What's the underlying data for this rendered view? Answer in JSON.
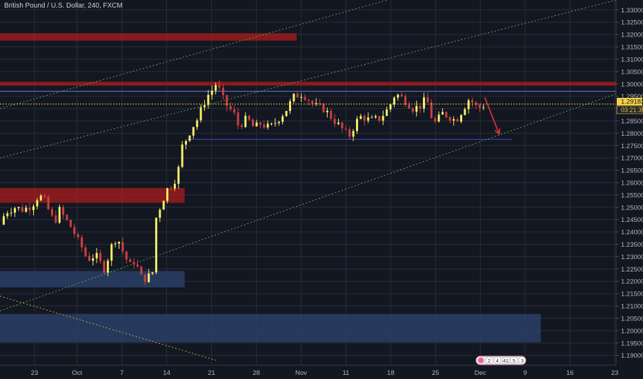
{
  "symbol_title": "British Pound / U.S. Dollar, 240, FXCM",
  "colors": {
    "background": "#131722",
    "grid": "#2a2e39",
    "candle_up": "#f5f06a",
    "candle_down": "#d04040",
    "resistance_zone": "#b71c1c",
    "support_zone": "#2a3f66",
    "channel_line": "#4caf50",
    "current_price_line": "#f5d142",
    "arrow": "#e53935",
    "axis_text": "#b2b5be"
  },
  "chart_data": {
    "type": "candlestick",
    "title": "British Pound / U.S. Dollar, 240, FXCM",
    "ylim": [
      1.186,
      1.334
    ],
    "grid": true,
    "y_ticks": [
      "1.19000",
      "1.19500",
      "1.20000",
      "1.20500",
      "1.21000",
      "1.21500",
      "1.22000",
      "1.22500",
      "1.23000",
      "1.23500",
      "1.24000",
      "1.24500",
      "1.25000",
      "1.25500",
      "1.26000",
      "1.26500",
      "1.27000",
      "1.27500",
      "1.28000",
      "1.28500",
      "1.29000",
      "1.29500",
      "1.30000",
      "1.30500",
      "1.31000",
      "1.31500",
      "1.32000",
      "1.32500",
      "1.33000"
    ],
    "x_ticks": [
      "23",
      "Oct",
      "7",
      "14",
      "21",
      "28",
      "Nov",
      "11",
      "18",
      "25",
      "Dec",
      "9",
      "16",
      "23"
    ],
    "x_tick_positions": [
      0.05,
      1,
      2,
      3,
      4,
      5,
      6,
      7,
      8,
      9,
      10,
      11,
      12,
      13
    ],
    "x_range": [
      -0.72,
      13.03
    ],
    "current_price": "1.29183",
    "countdown": "03:21:39",
    "current_price_value": 1.29183,
    "price_path": [
      [
        -0.72,
        1.243
      ],
      [
        -0.6,
        1.248
      ],
      [
        -0.4,
        1.25
      ],
      [
        -0.2,
        1.249
      ],
      [
        0.0,
        1.251
      ],
      [
        0.15,
        1.255
      ],
      [
        0.3,
        1.252
      ],
      [
        0.4,
        1.247
      ],
      [
        0.5,
        1.244
      ],
      [
        0.6,
        1.249
      ],
      [
        0.75,
        1.245
      ],
      [
        0.9,
        1.241
      ],
      [
        1.0,
        1.237
      ],
      [
        1.1,
        1.234
      ],
      [
        1.2,
        1.23
      ],
      [
        1.3,
        1.229
      ],
      [
        1.4,
        1.231
      ],
      [
        1.5,
        1.228
      ],
      [
        1.6,
        1.225
      ],
      [
        1.7,
        1.23
      ],
      [
        1.8,
        1.236
      ],
      [
        1.9,
        1.238
      ],
      [
        2.0,
        1.233
      ],
      [
        2.1,
        1.229
      ],
      [
        2.2,
        1.226
      ],
      [
        2.3,
        1.229
      ],
      [
        2.4,
        1.222
      ],
      [
        2.5,
        1.221
      ],
      [
        2.6,
        1.222
      ],
      [
        2.7,
        1.224
      ],
      [
        2.75,
        1.245
      ],
      [
        2.85,
        1.25
      ],
      [
        3.0,
        1.257
      ],
      [
        3.15,
        1.26
      ],
      [
        3.25,
        1.264
      ],
      [
        3.35,
        1.275
      ],
      [
        3.45,
        1.278
      ],
      [
        3.55,
        1.282
      ],
      [
        3.7,
        1.286
      ],
      [
        3.8,
        1.291
      ],
      [
        3.9,
        1.295
      ],
      [
        4.0,
        1.297
      ],
      [
        4.08,
        1.3
      ],
      [
        4.15,
        1.299
      ],
      [
        4.22,
        1.295
      ],
      [
        4.35,
        1.291
      ],
      [
        4.5,
        1.288
      ],
      [
        4.6,
        1.283
      ],
      [
        4.8,
        1.286
      ],
      [
        4.95,
        1.282
      ],
      [
        5.1,
        1.284
      ],
      [
        5.3,
        1.282
      ],
      [
        5.5,
        1.286
      ],
      [
        5.65,
        1.289
      ],
      [
        5.85,
        1.295
      ],
      [
        6.0,
        1.296
      ],
      [
        6.1,
        1.295
      ],
      [
        6.3,
        1.291
      ],
      [
        6.5,
        1.29
      ],
      [
        6.7,
        1.286
      ],
      [
        6.85,
        1.283
      ],
      [
        7.0,
        1.28
      ],
      [
        7.1,
        1.279
      ],
      [
        7.2,
        1.284
      ],
      [
        7.35,
        1.287
      ],
      [
        7.55,
        1.285
      ],
      [
        7.75,
        1.286
      ],
      [
        7.95,
        1.29
      ],
      [
        8.1,
        1.296
      ],
      [
        8.2,
        1.295
      ],
      [
        8.35,
        1.293
      ],
      [
        8.5,
        1.29
      ],
      [
        8.65,
        1.291
      ],
      [
        8.8,
        1.294
      ],
      [
        8.9,
        1.287
      ],
      [
        9.0,
        1.284
      ],
      [
        9.15,
        1.288
      ],
      [
        9.3,
        1.287
      ],
      [
        9.45,
        1.285
      ],
      [
        9.55,
        1.288
      ],
      [
        9.65,
        1.291
      ],
      [
        9.75,
        1.294
      ],
      [
        9.85,
        1.292
      ],
      [
        9.95,
        1.29
      ],
      [
        10.1,
        1.29183
      ]
    ]
  },
  "annotations": {
    "resistance_zones": [
      {
        "x": [
          -0.72,
          5.9
        ],
        "y": [
          1.3175,
          1.3205
        ]
      },
      {
        "x": [
          -0.72,
          13.03
        ],
        "y": [
          1.2993,
          1.3009
        ]
      },
      {
        "x": [
          -0.72,
          3.4
        ],
        "y": [
          1.2518,
          1.2578
        ]
      }
    ],
    "support_zones": [
      {
        "x": [
          -0.72,
          3.4
        ],
        "y": [
          1.2175,
          1.2242
        ]
      },
      {
        "x": [
          -0.72,
          11.35
        ],
        "y": [
          1.1953,
          1.2068
        ]
      }
    ],
    "horizontal_levels": [
      {
        "x": [
          -0.72,
          13.03
        ],
        "y": 1.297,
        "color": "#5c6bc0"
      },
      {
        "x": [
          3.4,
          10.7
        ],
        "y": 1.2775,
        "color": "#3949ab"
      }
    ],
    "channel_lines": [
      {
        "p1": [
          -0.72,
          1.27
        ],
        "p2": [
          13.03,
          1.334
        ]
      },
      {
        "p1": [
          -0.72,
          1.208
        ],
        "p2": [
          13.03,
          1.296
        ]
      },
      {
        "p1": [
          -0.72,
          1.214
        ],
        "p2": [
          4.1,
          1.188
        ]
      },
      {
        "p1": [
          -0.72,
          1.29
        ],
        "p2": [
          13.03,
          1.36
        ]
      }
    ],
    "arrow": {
      "from": [
        10.1,
        1.2945
      ],
      "to": [
        10.42,
        1.2797
      ]
    }
  },
  "badge": {
    "items": [
      "2",
      "4",
      "41",
      "5",
      "3"
    ]
  }
}
